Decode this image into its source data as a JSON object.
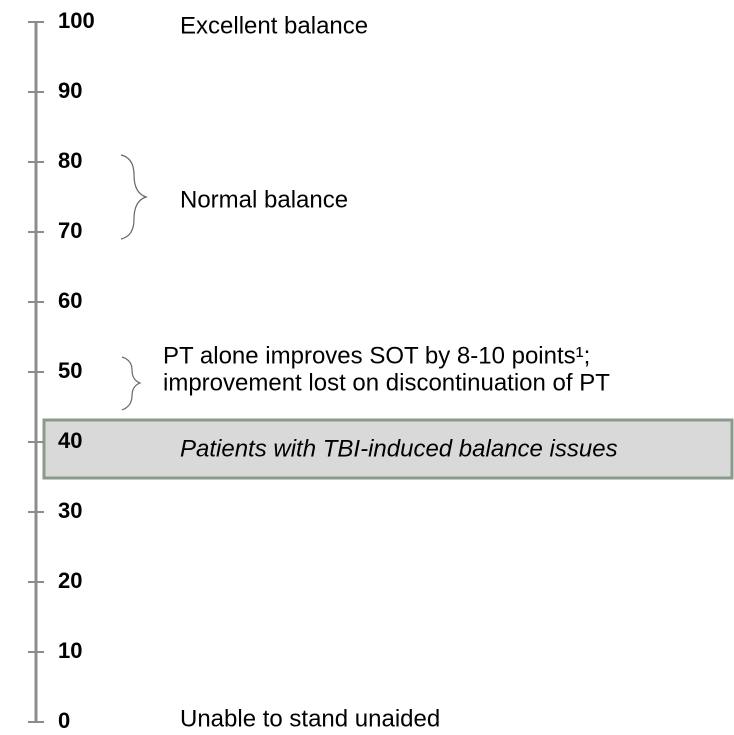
{
  "scale": {
    "range": [
      0,
      100
    ],
    "ticks": [
      100,
      90,
      80,
      70,
      60,
      50,
      40,
      30,
      20,
      10,
      0
    ]
  },
  "annotations": {
    "excellent": "Excellent balance",
    "normal": "Normal balance",
    "pt_line1": "PT alone improves SOT by 8-10 points¹;",
    "pt_line2": "improvement lost on discontinuation of PT",
    "unable": "Unable to stand unaided"
  },
  "band": {
    "label": "Patients with TBI-induced balance issues"
  }
}
